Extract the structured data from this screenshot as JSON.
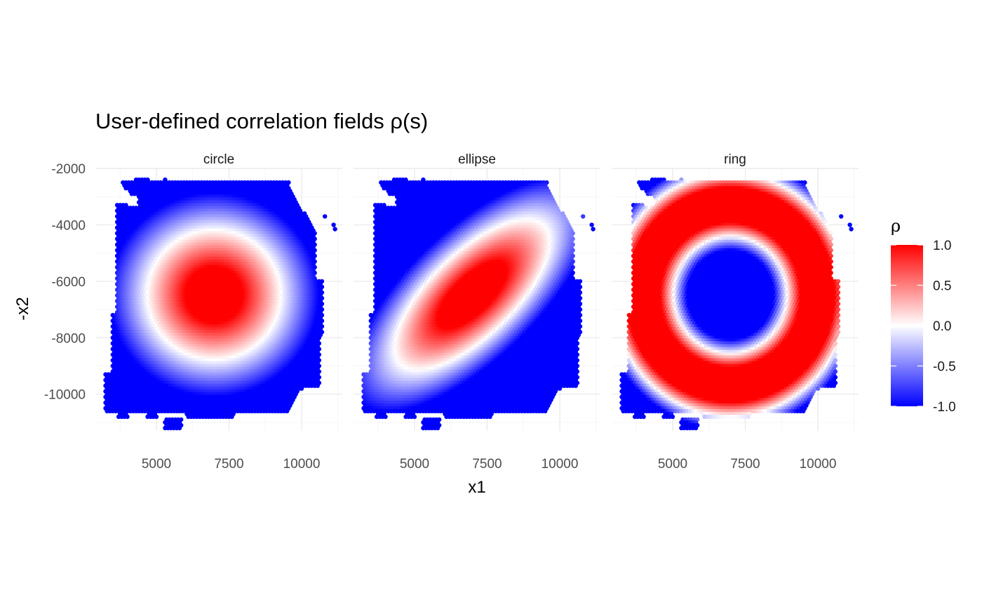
{
  "chart_data": {
    "type": "heatmap",
    "title": "User-defined correlation fields ρ(s)",
    "xlabel": "x1",
    "ylabel": "-x2",
    "xlim": [
      2900,
      11400
    ],
    "ylim": [
      -11300,
      -2000
    ],
    "x_ticks": [
      5000,
      7500,
      10000
    ],
    "x_tick_labels": [
      "5000",
      "7500",
      "10000"
    ],
    "y_ticks": [
      -2000,
      -4000,
      -6000,
      -8000,
      -10000
    ],
    "y_tick_labels": [
      "-2000",
      "-4000",
      "-6000",
      "-8000",
      "-10000"
    ],
    "grid": true,
    "panels": [
      {
        "name": "circle",
        "field": "rho = 1 at center (7000, -6500), decreasing radially to -1; ~0 at radius ~2300",
        "center": [
          7000,
          -6500
        ],
        "rho_zero_radius": 2300
      },
      {
        "name": "ellipse",
        "field": "rho = 1 along diagonal ellipse centered (7000, -6500) oriented ~45 deg; -1 far from axis",
        "center": [
          7000,
          -6500
        ],
        "orientation_deg": 45
      },
      {
        "name": "ring",
        "field": "rho = 1 on ring of radius ~3000 around (7000, -6500); -1 inside (r < ~2000) and outside",
        "center": [
          7000,
          -6500
        ],
        "ring_radius": 3000
      }
    ],
    "legend": {
      "title": "ρ",
      "placement": "right",
      "range": [
        -1,
        1
      ],
      "tick_values": [
        1.0,
        0.5,
        0.0,
        -0.5,
        -1.0
      ],
      "tick_labels": [
        "1.0",
        "0.5",
        "0.0",
        "-0.5",
        "-1.0"
      ],
      "colors": {
        "low": "#0000ff",
        "mid": "#ffffff",
        "high": "#ff0000"
      }
    }
  }
}
